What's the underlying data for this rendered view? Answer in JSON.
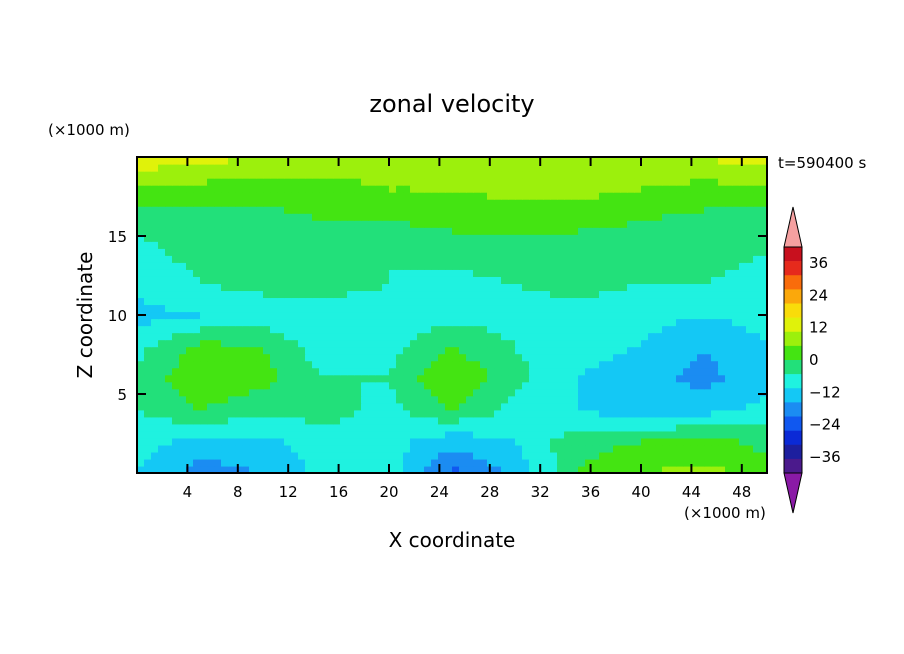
{
  "chart_data": {
    "type": "heatmap",
    "title": "zonal velocity",
    "xlabel": "X coordinate",
    "ylabel": "Z coordinate",
    "x_unit": "(×1000 m)",
    "y_unit": "(×1000 m)",
    "time_label": "t=590400 s",
    "xlim": [
      0,
      50
    ],
    "ylim": [
      0,
      20
    ],
    "x_ticks": [
      4,
      8,
      12,
      16,
      20,
      24,
      28,
      32,
      36,
      40,
      44,
      48
    ],
    "y_ticks": [
      5,
      10,
      15
    ],
    "colorbar": {
      "levels": [
        -42,
        -36,
        -30,
        -24,
        -18,
        -12,
        -6,
        0,
        6,
        12,
        18,
        24,
        30,
        36,
        42
      ],
      "colors": [
        "#4b1a8c",
        "#1d1f9e",
        "#0b2ad6",
        "#1058f0",
        "#1b8cf2",
        "#14c8f5",
        "#1ff2e0",
        "#22e07a",
        "#44e412",
        "#9cf00c",
        "#e0f20a",
        "#f9dc0a",
        "#fba80b",
        "#f96c0b",
        "#e62a1c",
        "#c8101e"
      ],
      "tick_labels": [
        "36",
        "24",
        "12",
        "0",
        "−12",
        "−24",
        "−36"
      ],
      "tick_values": [
        36,
        24,
        12,
        0,
        -12,
        -24,
        -36
      ],
      "extend_high_color": "#f5a0a0",
      "extend_low_color": "#8a1aa6"
    },
    "grid": false,
    "field_approximation": {
      "description": "zonal velocity u(x,z) sampled on coarse grid; rows from z=0 (bottom) to z=20 (top), columns x=0..50",
      "x_samples": [
        0,
        5,
        10,
        15,
        20,
        25,
        30,
        35,
        40,
        45,
        50
      ],
      "z_samples": [
        0,
        2,
        4,
        6,
        8,
        10,
        12,
        14,
        16,
        18,
        20
      ],
      "u": [
        [
          -6,
          -15,
          -12,
          -4,
          -2,
          -20,
          -10,
          6,
          12,
          14,
          10
        ],
        [
          -4,
          -8,
          -8,
          -2,
          -4,
          -10,
          -6,
          4,
          6,
          8,
          4
        ],
        [
          0,
          6,
          2,
          2,
          -2,
          6,
          -2,
          -6,
          -10,
          -8,
          -4
        ],
        [
          2,
          10,
          8,
          0,
          0,
          12,
          2,
          -6,
          -10,
          -14,
          -8
        ],
        [
          -2,
          8,
          6,
          -4,
          -2,
          6,
          0,
          -4,
          -6,
          -12,
          -6
        ],
        [
          -8,
          -6,
          -4,
          -6,
          -4,
          -2,
          -2,
          -2,
          -4,
          -6,
          -4
        ],
        [
          -4,
          0,
          2,
          4,
          0,
          -2,
          0,
          2,
          0,
          0,
          -2
        ],
        [
          -2,
          2,
          4,
          2,
          0,
          2,
          4,
          2,
          2,
          2,
          0
        ],
        [
          2,
          4,
          4,
          6,
          6,
          8,
          8,
          8,
          6,
          4,
          4
        ],
        [
          12,
          10,
          8,
          10,
          12,
          12,
          14,
          14,
          12,
          10,
          10
        ],
        [
          22,
          20,
          18,
          16,
          14,
          14,
          12,
          12,
          16,
          18,
          22
        ]
      ]
    }
  }
}
